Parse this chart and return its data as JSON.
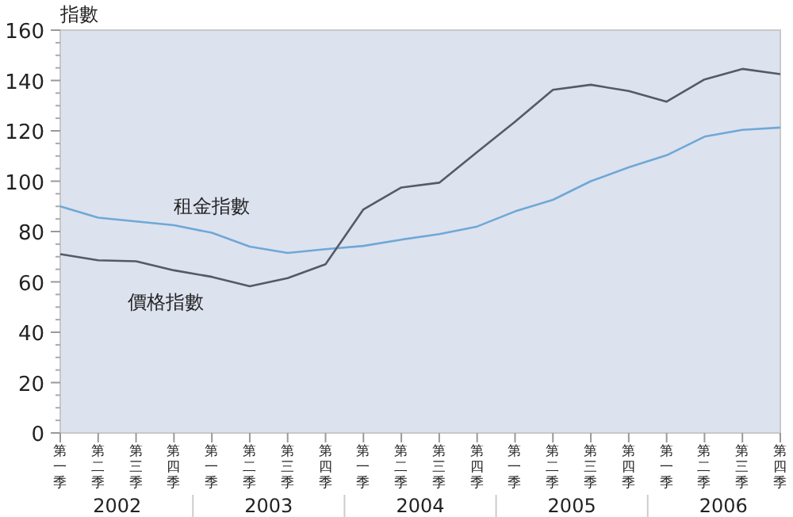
{
  "chart_data": {
    "type": "line",
    "ylabel": "指數",
    "categories": [
      "第一季",
      "第二季",
      "第三季",
      "第四季",
      "第一季",
      "第二季",
      "第三季",
      "第四季",
      "第一季",
      "第二季",
      "第三季",
      "第四季",
      "第一季",
      "第二季",
      "第三季",
      "第四季",
      "第一季",
      "第二季",
      "第三季",
      "第四季"
    ],
    "annotations": [
      "2002",
      "2003",
      "2004",
      "2005",
      "2006"
    ],
    "series": [
      {
        "name": "租金指數",
        "color": "#6fa8d6",
        "values": [
          90,
          85.5,
          84,
          82.5,
          79.5,
          74,
          71.5,
          73,
          74.3,
          76.8,
          79,
          82,
          88,
          92.6,
          100,
          105.5,
          110.3,
          117.7,
          120.4,
          121.3
        ]
      },
      {
        "name": "價格指數",
        "color": "#555a66",
        "values": [
          71,
          68.6,
          68.2,
          64.6,
          62,
          58.3,
          61.5,
          67,
          88.8,
          97.5,
          99.4,
          111.6,
          123.6,
          136.3,
          138.3,
          135.8,
          131.6,
          140.4,
          144.6,
          142.5
        ]
      }
    ],
    "ylim": [
      0,
      160
    ],
    "yticks": [
      0,
      20,
      40,
      60,
      80,
      100,
      120,
      140,
      160
    ],
    "grid": false,
    "legend": false,
    "marker": "none",
    "line_style": "solid"
  }
}
